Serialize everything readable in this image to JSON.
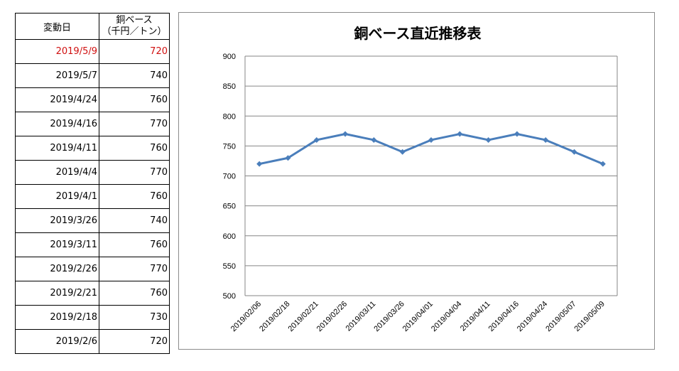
{
  "table": {
    "header_date": "変動日",
    "header_value_line1": "銅ベース",
    "header_value_line2": "（千円／トン）",
    "rows": [
      {
        "date": "2019/5/9",
        "value": "720"
      },
      {
        "date": "2019/5/7",
        "value": "740"
      },
      {
        "date": "2019/4/24",
        "value": "760"
      },
      {
        "date": "2019/4/16",
        "value": "770"
      },
      {
        "date": "2019/4/11",
        "value": "760"
      },
      {
        "date": "2019/4/4",
        "value": "770"
      },
      {
        "date": "2019/4/1",
        "value": "760"
      },
      {
        "date": "2019/3/26",
        "value": "740"
      },
      {
        "date": "2019/3/11",
        "value": "760"
      },
      {
        "date": "2019/2/26",
        "value": "770"
      },
      {
        "date": "2019/2/21",
        "value": "760"
      },
      {
        "date": "2019/2/18",
        "value": "730"
      },
      {
        "date": "2019/2/6",
        "value": "720"
      }
    ],
    "latest_color": "#d01010"
  },
  "chart_data": {
    "type": "line",
    "title": "銅ベース直近推移表",
    "xlabel": "",
    "ylabel": "",
    "categories": [
      "2019/02/06",
      "2019/02/18",
      "2019/02/21",
      "2019/02/26",
      "2019/03/11",
      "2019/03/26",
      "2019/04/01",
      "2019/04/04",
      "2019/04/11",
      "2019/04/16",
      "2019/04/24",
      "2019/05/07",
      "2019/05/09"
    ],
    "series": [
      {
        "values": [
          720,
          730,
          760,
          770,
          760,
          740,
          760,
          770,
          760,
          770,
          760,
          740,
          720
        ],
        "color": "#4a7ebb"
      }
    ],
    "ylim": [
      500,
      900
    ],
    "yticks": [
      "900",
      "850",
      "800",
      "750",
      "700",
      "650",
      "600",
      "550",
      "500"
    ],
    "grid": true,
    "legend": "none"
  }
}
